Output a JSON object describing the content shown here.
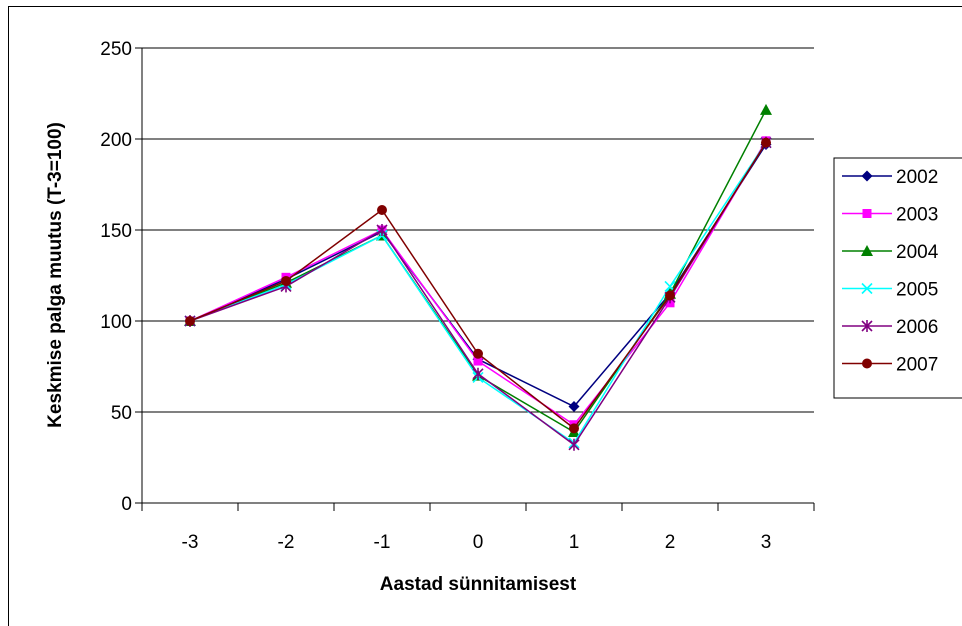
{
  "chart_data": {
    "type": "line",
    "title": "",
    "xlabel": "Aastad sünnitamisest",
    "ylabel": "Keskmise palga muutus (T-3=100)",
    "categories": [
      "-3",
      "-2",
      "-1",
      "0",
      "1",
      "2",
      "3"
    ],
    "ylim": [
      0,
      250
    ],
    "yticks": [
      0,
      50,
      100,
      150,
      200,
      250
    ],
    "grid": true,
    "legend_position": "right",
    "series": [
      {
        "name": "2002",
        "color": "#000080",
        "marker": "diamond",
        "values": [
          100,
          123,
          149,
          79,
          53,
          115,
          197
        ]
      },
      {
        "name": "2003",
        "color": "#ff00ff",
        "marker": "square",
        "values": [
          100,
          124,
          150,
          78,
          43,
          110,
          199
        ]
      },
      {
        "name": "2004",
        "color": "#008000",
        "marker": "triangle",
        "values": [
          100,
          121,
          147,
          70,
          39,
          115,
          216
        ]
      },
      {
        "name": "2005",
        "color": "#00ffff",
        "marker": "x",
        "values": [
          100,
          120,
          147,
          69,
          33,
          119,
          198
        ]
      },
      {
        "name": "2006",
        "color": "#800080",
        "marker": "star",
        "values": [
          100,
          119,
          150,
          71,
          32,
          113,
          198
        ]
      },
      {
        "name": "2007",
        "color": "#800000",
        "marker": "circle",
        "values": [
          100,
          122,
          161,
          82,
          41,
          114,
          198
        ]
      }
    ]
  }
}
